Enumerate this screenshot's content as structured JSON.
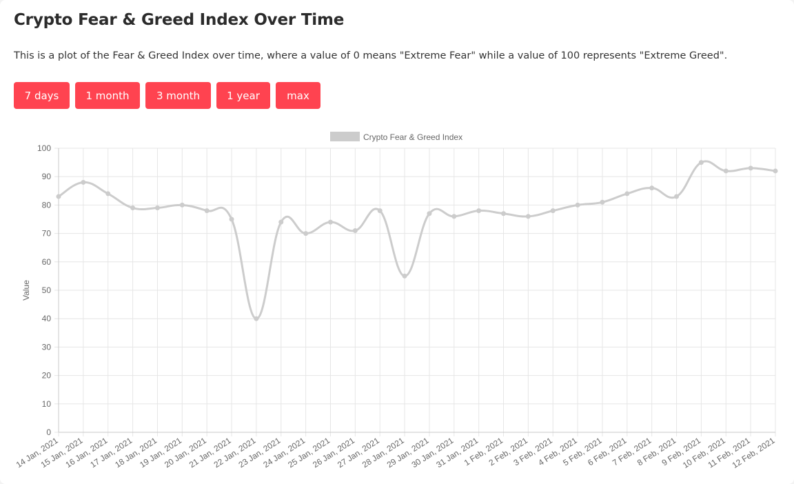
{
  "header": {
    "title": "Crypto Fear & Greed Index Over Time",
    "description": "This is a plot of the Fear & Greed Index over time, where a value of 0 means \"Extreme Fear\" while a value of 100 represents \"Extreme Greed\"."
  },
  "range_buttons": [
    {
      "label": "7 days"
    },
    {
      "label": "1 month"
    },
    {
      "label": "3 month"
    },
    {
      "label": "1 year"
    },
    {
      "label": "max"
    }
  ],
  "colors": {
    "button_bg": "#ff4350",
    "button_text": "#ffffff",
    "series_line": "#cccccc",
    "grid": "#e6e6e6",
    "axis_text": "#666666"
  },
  "chart_data": {
    "type": "line",
    "x": [
      "14 Jan, 2021",
      "15 Jan, 2021",
      "16 Jan, 2021",
      "17 Jan, 2021",
      "18 Jan, 2021",
      "19 Jan, 2021",
      "20 Jan, 2021",
      "21 Jan, 2021",
      "22 Jan, 2021",
      "23 Jan, 2021",
      "24 Jan, 2021",
      "25 Jan, 2021",
      "26 Jan, 2021",
      "27 Jan, 2021",
      "28 Jan, 2021",
      "29 Jan, 2021",
      "30 Jan, 2021",
      "31 Jan, 2021",
      "1 Feb, 2021",
      "2 Feb, 2021",
      "3 Feb, 2021",
      "4 Feb, 2021",
      "5 Feb, 2021",
      "6 Feb, 2021",
      "7 Feb, 2021",
      "8 Feb, 2021",
      "9 Feb, 2021",
      "10 Feb, 2021",
      "11 Feb, 2021",
      "12 Feb, 2021"
    ],
    "series": [
      {
        "name": "Crypto Fear & Greed Index",
        "values": [
          83,
          88,
          84,
          79,
          79,
          80,
          78,
          75,
          40,
          74,
          70,
          74,
          71,
          78,
          55,
          77,
          76,
          78,
          77,
          76,
          78,
          80,
          81,
          84,
          86,
          83,
          95,
          92,
          93,
          92
        ]
      }
    ],
    "ylabel": "Value",
    "xlabel": "",
    "ylim": [
      0,
      100
    ],
    "yticks": [
      0,
      10,
      20,
      30,
      40,
      50,
      60,
      70,
      80,
      90,
      100
    ],
    "grid": true,
    "legend_position": "top"
  }
}
